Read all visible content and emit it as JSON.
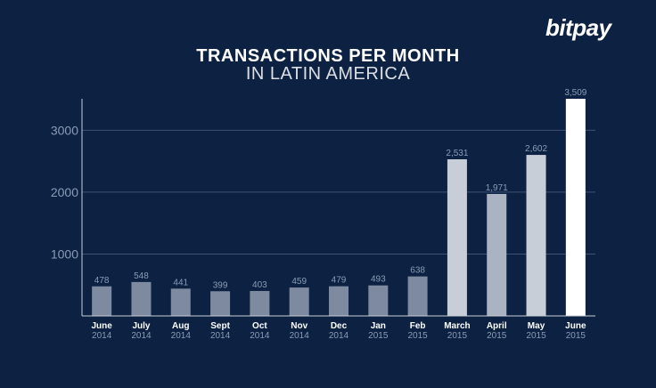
{
  "brand": "bitpay",
  "chart_data": {
    "type": "bar",
    "title": "TRANSACTIONS PER MONTH",
    "subtitle": "IN LATIN AMERICA",
    "categories": [
      {
        "month": "June",
        "year": "2014"
      },
      {
        "month": "July",
        "year": "2014"
      },
      {
        "month": "Aug",
        "year": "2014"
      },
      {
        "month": "Sept",
        "year": "2014"
      },
      {
        "month": "Oct",
        "year": "2014"
      },
      {
        "month": "Nov",
        "year": "2014"
      },
      {
        "month": "Dec",
        "year": "2014"
      },
      {
        "month": "Jan",
        "year": "2015"
      },
      {
        "month": "Feb",
        "year": "2015"
      },
      {
        "month": "March",
        "year": "2015"
      },
      {
        "month": "April",
        "year": "2015"
      },
      {
        "month": "May",
        "year": "2015"
      },
      {
        "month": "June",
        "year": "2015"
      }
    ],
    "values": [
      478,
      548,
      441,
      399,
      403,
      459,
      479,
      493,
      638,
      2531,
      1971,
      2602,
      3509
    ],
    "value_labels": [
      "478",
      "548",
      "441",
      "399",
      "403",
      "459",
      "479",
      "493",
      "638",
      "2,531",
      "1,971",
      "2,602",
      "3,509"
    ],
    "yticks": [
      1000,
      2000,
      3000
    ],
    "ylim": [
      0,
      3509
    ],
    "grid": true,
    "colors": {
      "background": "#0d2243",
      "bar_low": "#7d8aa0",
      "bar_high": "#c8ced8",
      "bar_latest": "#ffffff",
      "grid": "#3d5275",
      "axis": "#c8ced8"
    }
  }
}
